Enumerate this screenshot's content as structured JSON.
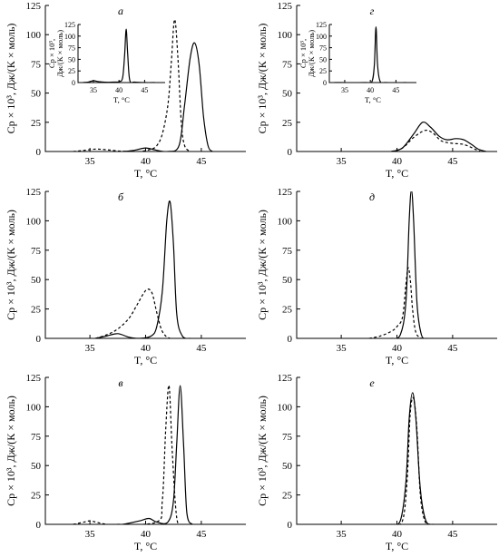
{
  "figure": {
    "xlabel": "T, °C",
    "ylabel": "Cp × 10³, Дж/(К × моль)"
  },
  "chart_data": [
    {
      "type": "line",
      "panel_label": "а",
      "xlim": [
        31,
        49
      ],
      "ylim": [
        0,
        125
      ],
      "xticks": [
        35,
        40,
        45
      ],
      "yticks": [
        0,
        25,
        50,
        75,
        100,
        125
      ],
      "xlabel": "T, °C",
      "ylabel": "Cp × 10³, Дж/(К × моль)",
      "series": [
        {
          "style": "solid",
          "x": [
            38.0,
            39.0,
            40.0,
            41.0,
            42.0,
            43.0,
            43.5,
            44.0,
            44.4,
            44.8,
            45.2,
            45.6,
            46.0
          ],
          "y": [
            0,
            1,
            3,
            1,
            0,
            5,
            40,
            80,
            93,
            75,
            30,
            5,
            0
          ]
        },
        {
          "style": "dashed",
          "x": [
            33.5,
            34.5,
            35.5,
            36.5,
            37.5,
            38.5,
            39.5,
            40.5,
            41.0,
            41.5,
            42.0,
            42.3,
            42.6,
            42.9,
            43.2,
            43.5,
            44.0
          ],
          "y": [
            0,
            1,
            2,
            1.5,
            0.5,
            0,
            0,
            2,
            5,
            15,
            40,
            75,
            113,
            80,
            25,
            5,
            0
          ]
        }
      ],
      "inset": {
        "xlim": [
          32,
          49
        ],
        "ylim": [
          0,
          125
        ],
        "xticks": [
          35,
          40,
          45
        ],
        "yticks": [
          0,
          25,
          50,
          75,
          100,
          125
        ],
        "xlabel": "T, °C",
        "ylabel_line1": "Cp × 10³,",
        "ylabel_line2": "Дж/(К × моль)",
        "series": [
          {
            "style": "solid",
            "x": [
              33,
              34,
              35,
              36,
              37,
              38,
              39,
              40,
              40.7,
              41.1,
              41.4,
              41.7,
              42.1,
              43,
              45,
              47
            ],
            "y": [
              0,
              1,
              4,
              2,
              1,
              0.5,
              1,
              2,
              10,
              60,
              115,
              60,
              5,
              1,
              0,
              0
            ]
          }
        ]
      }
    },
    {
      "type": "line",
      "panel_label": "г",
      "xlim": [
        31,
        49
      ],
      "ylim": [
        0,
        125
      ],
      "xticks": [
        35,
        40,
        45
      ],
      "yticks": [
        0,
        25,
        50,
        75,
        100,
        125
      ],
      "xlabel": "T, °C",
      "ylabel": "Cp × 10³, Дж/(К × моль)",
      "series": [
        {
          "style": "solid",
          "x": [
            39.5,
            40.5,
            41.5,
            42.3,
            43.0,
            43.8,
            44.5,
            45.3,
            46.0,
            46.7,
            47.3,
            48.0
          ],
          "y": [
            0,
            3,
            15,
            25,
            21,
            13,
            10,
            11,
            10,
            6,
            2,
            0
          ]
        },
        {
          "style": "dashed",
          "x": [
            39.5,
            40.5,
            41.5,
            42.5,
            43.2,
            44.0,
            45.0,
            46.0,
            47.0,
            47.5
          ],
          "y": [
            0,
            3,
            12,
            18,
            16,
            9,
            7,
            6,
            2,
            0
          ]
        }
      ],
      "inset": {
        "xlim": [
          32,
          49
        ],
        "ylim": [
          0,
          125
        ],
        "xticks": [
          35,
          40,
          45
        ],
        "yticks": [
          0,
          25,
          50,
          75,
          100,
          125
        ],
        "xlabel": "T, °C",
        "ylabel_line1": "Cp × 10³,",
        "ylabel_line2": "Дж/(К × моль)",
        "series": [
          {
            "style": "solid",
            "x": [
              33,
              39,
              40.3,
              40.8,
              41.1,
              41.4,
              41.9,
              43,
              47
            ],
            "y": [
              0,
              0,
              2,
              40,
              120,
              40,
              3,
              0,
              0
            ]
          }
        ]
      }
    },
    {
      "type": "line",
      "panel_label": "б",
      "xlim": [
        31,
        49
      ],
      "ylim": [
        0,
        125
      ],
      "xticks": [
        35,
        40,
        45
      ],
      "yticks": [
        0,
        25,
        50,
        75,
        100,
        125
      ],
      "xlabel": "T, °C",
      "ylabel": "Cp × 10³, Дж/(К × моль)",
      "series": [
        {
          "style": "solid",
          "x": [
            35.5,
            36.5,
            37.5,
            38.5,
            39.5,
            40.5,
            41.0,
            41.5,
            41.9,
            42.2,
            42.5,
            42.8,
            43.3,
            44.0
          ],
          "y": [
            0,
            2,
            4,
            1,
            0,
            2,
            10,
            40,
            100,
            116,
            80,
            20,
            2,
            0
          ]
        },
        {
          "style": "dashed",
          "x": [
            35.5,
            36.5,
            37.5,
            38.5,
            39.2,
            39.8,
            40.2,
            40.6,
            41.0,
            41.4,
            41.8,
            42.2
          ],
          "y": [
            0,
            3,
            8,
            17,
            28,
            38,
            42,
            38,
            22,
            8,
            2,
            0
          ]
        }
      ]
    },
    {
      "type": "line",
      "panel_label": "д",
      "xlim": [
        31,
        49
      ],
      "ylim": [
        0,
        125
      ],
      "xticks": [
        35,
        40,
        45
      ],
      "yticks": [
        0,
        25,
        50,
        75,
        100,
        125
      ],
      "xlabel": "T, °C",
      "ylabel": "Cp × 10³, Дж/(К × моль)",
      "series": [
        {
          "style": "solid",
          "x": [
            39.5,
            40.3,
            40.8,
            41.1,
            41.3,
            41.5,
            41.8,
            42.2,
            42.7
          ],
          "y": [
            0,
            3,
            30,
            100,
            126,
            100,
            30,
            3,
            0
          ]
        },
        {
          "style": "dashed",
          "x": [
            37.5,
            38.5,
            39.5,
            40.0,
            40.5,
            40.8,
            41.0,
            41.2,
            41.4,
            41.7,
            42.2
          ],
          "y": [
            0,
            2,
            6,
            10,
            18,
            45,
            60,
            50,
            25,
            5,
            0
          ]
        }
      ]
    },
    {
      "type": "line",
      "panel_label": "в",
      "xlim": [
        31,
        49
      ],
      "ylim": [
        0,
        125
      ],
      "xticks": [
        35,
        40,
        45
      ],
      "yticks": [
        0,
        25,
        50,
        75,
        100,
        125
      ],
      "xlabel": "T, °C",
      "ylabel": "Cp × 10³, Дж/(К × моль)",
      "series": [
        {
          "style": "solid",
          "x": [
            38.0,
            39.5,
            40.3,
            41.0,
            42.0,
            42.5,
            42.8,
            43.1,
            43.4,
            43.7,
            44.2
          ],
          "y": [
            0,
            3,
            5,
            2,
            2,
            20,
            70,
            118,
            70,
            10,
            0
          ]
        },
        {
          "style": "dashed",
          "x": [
            33.5,
            34.5,
            35.0,
            35.5,
            36.5,
            37.5,
            41.0,
            41.5,
            41.8,
            42.1,
            42.4,
            42.8,
            43.3
          ],
          "y": [
            0,
            2,
            3,
            2,
            0,
            0,
            2,
            20,
            80,
            118,
            60,
            5,
            0
          ]
        }
      ]
    },
    {
      "type": "line",
      "panel_label": "е",
      "xlim": [
        31,
        49
      ],
      "ylim": [
        0,
        125
      ],
      "xticks": [
        35,
        40,
        45
      ],
      "yticks": [
        0,
        25,
        50,
        75,
        100,
        125
      ],
      "xlabel": "T, °C",
      "ylabel": "Cp × 10³, Дж/(К × моль)",
      "series": [
        {
          "style": "solid",
          "x": [
            39.5,
            40.3,
            40.8,
            41.1,
            41.4,
            41.7,
            42.1,
            42.6,
            43.3
          ],
          "y": [
            0,
            3,
            35,
            90,
            112,
            90,
            30,
            3,
            0
          ]
        },
        {
          "style": "dashed",
          "x": [
            39.7,
            40.5,
            40.9,
            41.2,
            41.5,
            41.8,
            42.1,
            42.5,
            43.0
          ],
          "y": [
            0,
            3,
            35,
            95,
            107,
            80,
            25,
            3,
            0
          ]
        }
      ]
    }
  ]
}
